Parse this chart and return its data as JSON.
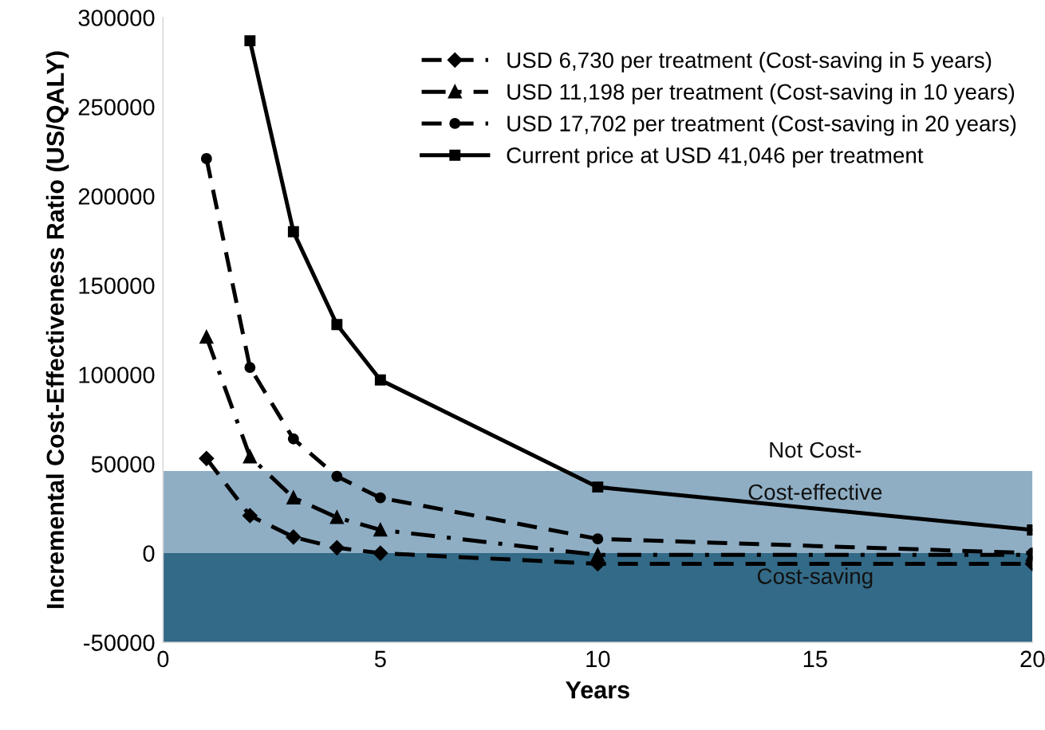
{
  "chart_data": {
    "type": "line",
    "xlabel": "Years",
    "ylabel": "Incremental Cost-Effectiveness Ratio (US/QALY)",
    "x": [
      1,
      2,
      3,
      4,
      5,
      10,
      20
    ],
    "series": [
      {
        "name": "USD 6,730 per treatment (Cost-saving in 5 years)",
        "color": "#000000",
        "marker": "diamond",
        "line_style": "dashed",
        "values": [
          53000,
          21000,
          9000,
          3000,
          0,
          -6000,
          -6000
        ]
      },
      {
        "name": "USD 11,198 per treatment (Cost-saving in 10 years)",
        "color": "#000000",
        "marker": "triangle",
        "line_style": "dashdot",
        "values": [
          121000,
          54000,
          31000,
          20000,
          13000,
          -1000,
          -1000
        ]
      },
      {
        "name": "USD 17,702 per treatment (Cost-saving in 20 years)",
        "color": "#000000",
        "marker": "circle",
        "line_style": "dashed",
        "values": [
          221000,
          104000,
          64000,
          43000,
          31000,
          8000,
          0
        ]
      },
      {
        "name": "Current price at USD 41,046 per treatment",
        "color": "#000000",
        "marker": "square",
        "line_style": "solid",
        "values": [
          null,
          287000,
          180000,
          128000,
          97000,
          37000,
          13000
        ]
      }
    ],
    "bands": [
      {
        "axis": "y",
        "from": 0,
        "to": 46000,
        "label": "Cost-effective",
        "color": "#8faec4"
      },
      {
        "axis": "y",
        "from": -50000,
        "to": 0,
        "label": "Cost-saving",
        "color": "#336a87"
      }
    ],
    "annotations": [
      "Not Cost-"
    ],
    "xlim": [
      0,
      20
    ],
    "xticks": [
      0,
      5,
      10,
      15,
      20
    ],
    "ylim": [
      -50000,
      300000
    ],
    "yticks": [
      -50000,
      0,
      50000,
      100000,
      150000,
      200000,
      250000,
      300000
    ],
    "grid": false,
    "legend": "top right"
  }
}
